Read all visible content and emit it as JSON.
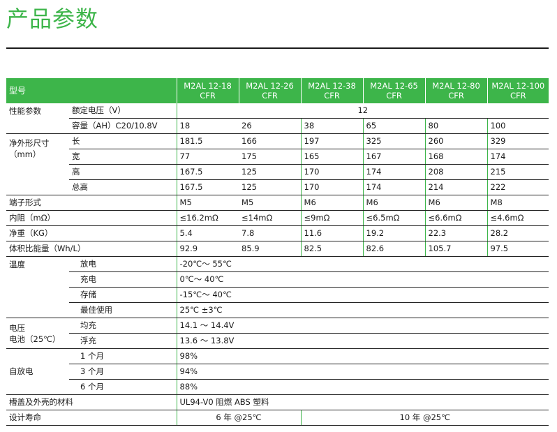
{
  "page": {
    "title": "产品参数"
  },
  "table": {
    "header_label": "型号",
    "models": [
      {
        "line1": "M2AL 12-18",
        "line2": "CFR"
      },
      {
        "line1": "M2AL 12-26",
        "line2": "CFR"
      },
      {
        "line1": "M2AL 12-38",
        "line2": "CFR"
      },
      {
        "line1": "M2AL 12-65",
        "line2": "CFR"
      },
      {
        "line1": "M2AL 12-80",
        "line2": "CFR"
      },
      {
        "line1": "M2AL 12-100",
        "line2": "CFR"
      }
    ],
    "performance": {
      "label": "性能参数",
      "voltage_label": "额定电压（V）",
      "voltage_value": "12",
      "capacity_label": "容量（AH）C20/10.8V",
      "capacity": [
        "18",
        "26",
        "38",
        "65",
        "80",
        "100"
      ]
    },
    "dimensions": {
      "label_line1": "净外形尺寸",
      "label_line2": "（mm）",
      "length_label": "长",
      "length": [
        "181.5",
        "166",
        "197",
        "325",
        "260",
        "329"
      ],
      "width_label": "宽",
      "width": [
        "77",
        "175",
        "165",
        "167",
        "168",
        "174"
      ],
      "height_label": "高",
      "height": [
        "167.5",
        "125",
        "170",
        "174",
        "208",
        "215"
      ],
      "total_height_label": "总高",
      "total_height": [
        "167.5",
        "125",
        "170",
        "174",
        "214",
        "222"
      ]
    },
    "terminal": {
      "label": "端子形式",
      "values": [
        "M5",
        "M5",
        "M6",
        "M6",
        "M6",
        "M8"
      ]
    },
    "resistance": {
      "label": "内阻（mΩ）",
      "values": [
        "≤16.2mΩ",
        "≤14mΩ",
        "≤9mΩ",
        "≤6.5mΩ",
        "≤6.6mΩ",
        "≤4.6mΩ"
      ]
    },
    "weight": {
      "label": "净重（KG）",
      "values": [
        "5.4",
        "7.8",
        "11.6",
        "19.2",
        "22.3",
        "28.2"
      ]
    },
    "energy_density": {
      "label": "体积比能量（Wh/L）",
      "values": [
        "92.9",
        "85.9",
        "82.5",
        "82.6",
        "105.7",
        "97.5"
      ]
    },
    "temperature": {
      "label": "温度",
      "discharge_label": "放电",
      "discharge": "-20℃～ 55℃",
      "charge_label": "充电",
      "charge": "0℃～ 40℃",
      "storage_label": "存储",
      "storage": "-15℃～ 40℃",
      "optimal_label": "最佳使用",
      "optimal": "25℃ ±3℃"
    },
    "battery_voltage": {
      "label_line1": "电压",
      "label_line2": "电池（25℃）",
      "equalize_label": "均充",
      "equalize": "14.1 ～ 14.4V",
      "float_label": "浮充",
      "float": "13.6 ～ 13.8V"
    },
    "self_discharge": {
      "label": "自放电",
      "m1_label": "1 个月",
      "m1": "98%",
      "m3_label": "3 个月",
      "m3": "94%",
      "m6_label": "6 个月",
      "m6": "88%"
    },
    "material": {
      "label": "槽盖及外壳的材料",
      "value": "UL94-V0 阻燃 ABS 塑料"
    },
    "design_life": {
      "label": "设计寿命",
      "value_a": "6 年 @25℃",
      "value_b": "10 年 @25℃"
    }
  }
}
